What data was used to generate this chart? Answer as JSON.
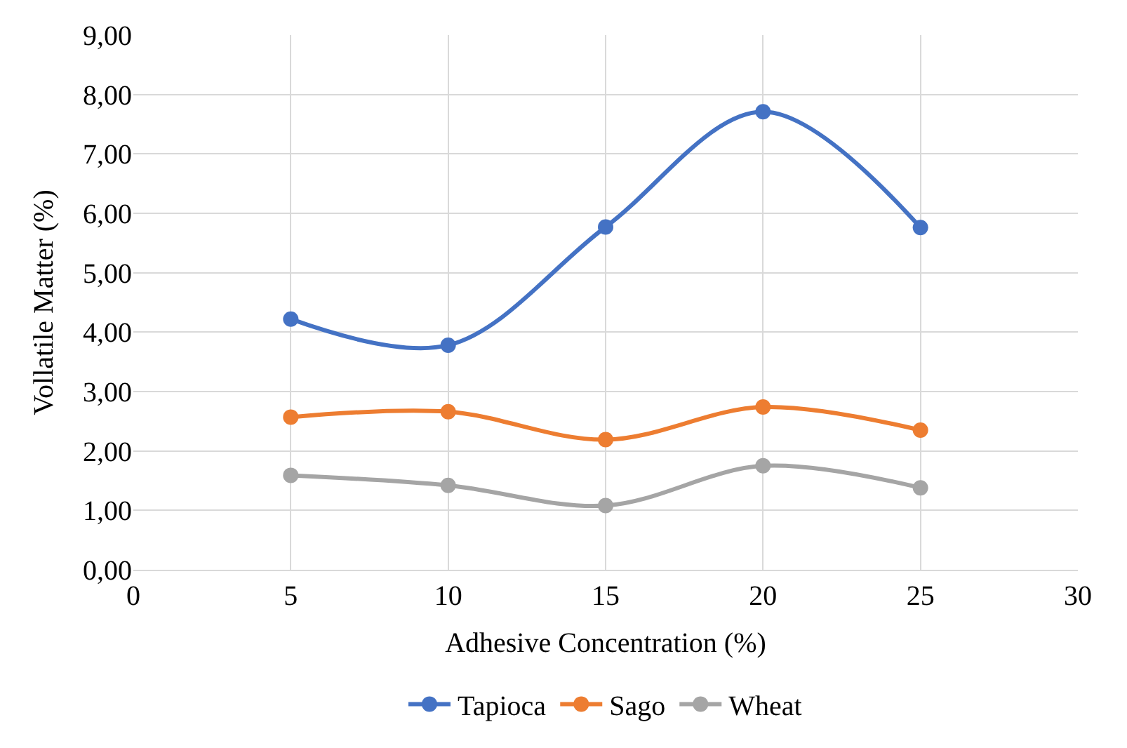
{
  "chart_data": {
    "type": "line",
    "xlabel": "Adhesive Concentration (%)",
    "ylabel": "Vollatile Matter (%)",
    "x": [
      5,
      10,
      15,
      20,
      25
    ],
    "series": [
      {
        "name": "Tapioca",
        "color": "#4472c4",
        "values": [
          4.22,
          3.78,
          5.77,
          7.71,
          5.76
        ]
      },
      {
        "name": "Sago",
        "color": "#ed7d31",
        "values": [
          2.57,
          2.66,
          2.19,
          2.74,
          2.35
        ]
      },
      {
        "name": "Wheat",
        "color": "#a5a5a5",
        "values": [
          1.59,
          1.42,
          1.08,
          1.75,
          1.38
        ]
      }
    ],
    "xlim": [
      0,
      30
    ],
    "xticks": [
      0,
      5,
      10,
      15,
      20,
      25,
      30
    ],
    "ylim": [
      0,
      9
    ],
    "yticks": [
      {
        "value": 0,
        "label": "0,00"
      },
      {
        "value": 1,
        "label": "1,00"
      },
      {
        "value": 2,
        "label": "2,00"
      },
      {
        "value": 3,
        "label": "3,00"
      },
      {
        "value": 4,
        "label": "4,00"
      },
      {
        "value": 5,
        "label": "5,00"
      },
      {
        "value": 6,
        "label": "6,00"
      },
      {
        "value": 7,
        "label": "7,00"
      },
      {
        "value": 8,
        "label": "8,00"
      },
      {
        "value": 9,
        "label": "9,00"
      }
    ],
    "grid": true,
    "legend": "bottom",
    "marker": "circle",
    "line_style": "solid"
  }
}
